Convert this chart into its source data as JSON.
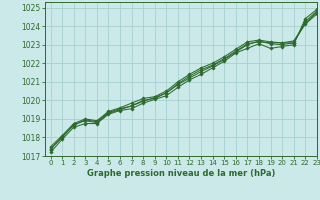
{
  "title": "Graphe pression niveau de la mer (hPa)",
  "xlim": [
    -0.5,
    23
  ],
  "ylim": [
    1017,
    1025.3
  ],
  "yticks": [
    1017,
    1018,
    1019,
    1020,
    1021,
    1022,
    1023,
    1024,
    1025
  ],
  "xticks": [
    0,
    1,
    2,
    3,
    4,
    5,
    6,
    7,
    8,
    9,
    10,
    11,
    12,
    13,
    14,
    15,
    16,
    17,
    18,
    19,
    20,
    21,
    22,
    23
  ],
  "background_color": "#cce9e9",
  "grid_color": "#a8d0d0",
  "line_color": "#2d6a2d",
  "series": [
    [
      1017.2,
      1017.9,
      1018.55,
      1018.75,
      1018.75,
      1019.25,
      1019.45,
      1019.55,
      1019.85,
      1020.05,
      1020.25,
      1020.7,
      1021.1,
      1021.4,
      1021.75,
      1022.1,
      1022.55,
      1022.8,
      1023.05,
      1022.8,
      1022.9,
      1023.0,
      1024.4,
      1024.9
    ],
    [
      1017.4,
      1018.0,
      1018.7,
      1018.9,
      1018.8,
      1019.3,
      1019.5,
      1019.7,
      1020.0,
      1020.1,
      1020.4,
      1020.9,
      1021.3,
      1021.65,
      1021.9,
      1022.25,
      1022.65,
      1023.05,
      1023.15,
      1023.1,
      1023.1,
      1023.1,
      1024.15,
      1024.75
    ],
    [
      1017.5,
      1018.1,
      1018.75,
      1019.0,
      1018.9,
      1019.4,
      1019.6,
      1019.85,
      1020.1,
      1020.2,
      1020.5,
      1021.0,
      1021.4,
      1021.75,
      1022.0,
      1022.35,
      1022.75,
      1023.15,
      1023.25,
      1023.15,
      1023.1,
      1023.2,
      1024.1,
      1024.65
    ],
    [
      1017.35,
      1018.05,
      1018.65,
      1018.95,
      1018.85,
      1019.35,
      1019.55,
      1019.7,
      1019.95,
      1020.15,
      1020.4,
      1020.85,
      1021.2,
      1021.55,
      1021.85,
      1022.2,
      1022.6,
      1023.0,
      1023.2,
      1023.05,
      1023.0,
      1023.1,
      1024.25,
      1024.8
    ]
  ]
}
